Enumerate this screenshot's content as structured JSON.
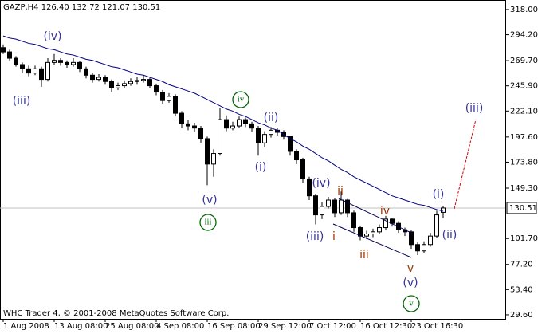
{
  "chart_data": {
    "type": "candlestick",
    "title": "GAZP,H4  126.40 132.72 121.07 130.51",
    "footer": "WHC Trader 4, © 2001-2008 MetaQuotes Software Corp.",
    "xlim": [
      -0.5,
      78.75
    ],
    "xticks": [
      {
        "value": 0,
        "label": "1 Aug 2008"
      },
      {
        "value": 8,
        "label": "13 Aug 08:00"
      },
      {
        "value": 16,
        "label": "25 Aug 08:00"
      },
      {
        "value": 24,
        "label": "4 Sep 08:00"
      },
      {
        "value": 32,
        "label": "16 Sep 08:00"
      },
      {
        "value": 40,
        "label": "29 Sep 12:00"
      },
      {
        "value": 48,
        "label": "7 Oct 12:00"
      },
      {
        "value": 56,
        "label": "16 Oct 12:30"
      },
      {
        "value": 64,
        "label": "23 Oct 16:30"
      }
    ],
    "ylim": [
      25.8,
      327.0
    ],
    "yticks": [
      {
        "value": 318,
        "label": "318.00"
      },
      {
        "value": 294.2,
        "label": "294.20"
      },
      {
        "value": 269.7,
        "label": "269.70"
      },
      {
        "value": 245.9,
        "label": "245.90"
      },
      {
        "value": 222.1,
        "label": "222.10"
      },
      {
        "value": 197.6,
        "label": "197.60"
      },
      {
        "value": 173.8,
        "label": "173.80"
      },
      {
        "value": 149.3,
        "label": "149.30"
      },
      {
        "value": 101.7,
        "label": "101.70"
      },
      {
        "value": 77.2,
        "label": "77.20"
      },
      {
        "value": 53.4,
        "label": "53.40"
      },
      {
        "value": 29.6,
        "label": "29.60"
      }
    ],
    "last_price": {
      "value": 130.51,
      "label": "130.51"
    },
    "up_color": "#ffffff",
    "down_color": "#000000",
    "ohlc": [
      [
        282,
        285,
        276,
        278
      ],
      [
        278,
        280,
        270,
        272
      ],
      [
        272,
        274,
        264,
        266
      ],
      [
        266,
        268,
        258,
        262
      ],
      [
        262,
        265,
        255,
        258
      ],
      [
        258,
        265,
        256,
        262
      ],
      [
        262,
        264,
        245,
        252
      ],
      [
        252,
        272,
        250,
        268
      ],
      [
        268,
        276,
        266,
        270
      ],
      [
        270,
        272,
        265,
        268
      ],
      [
        268,
        270,
        263,
        266
      ],
      [
        266,
        272,
        264,
        268
      ],
      [
        268,
        269,
        259,
        262
      ],
      [
        262,
        264,
        253,
        256
      ],
      [
        256,
        258,
        249,
        252
      ],
      [
        252,
        257,
        250,
        254
      ],
      [
        254,
        256,
        247,
        250
      ],
      [
        250,
        252,
        240,
        244
      ],
      [
        244,
        249,
        242,
        246
      ],
      [
        246,
        251,
        244,
        248
      ],
      [
        248,
        253,
        246,
        250
      ],
      [
        250,
        254,
        247,
        251
      ],
      [
        251,
        256,
        249,
        252
      ],
      [
        252,
        254,
        244,
        246
      ],
      [
        246,
        248,
        237,
        240
      ],
      [
        240,
        242,
        229,
        232
      ],
      [
        232,
        239,
        230,
        236
      ],
      [
        236,
        238,
        217,
        220
      ],
      [
        220,
        222,
        206,
        210
      ],
      [
        210,
        214,
        204,
        208
      ],
      [
        208,
        211,
        202,
        206
      ],
      [
        206,
        208,
        192,
        196
      ],
      [
        196,
        198,
        152,
        172
      ],
      [
        172,
        186,
        160,
        182
      ],
      [
        182,
        225,
        180,
        214
      ],
      [
        214,
        218,
        203,
        206
      ],
      [
        206,
        212,
        204,
        208
      ],
      [
        208,
        217,
        206,
        214
      ],
      [
        214,
        216,
        207,
        210
      ],
      [
        210,
        212,
        202,
        206
      ],
      [
        206,
        208,
        180,
        192
      ],
      [
        192,
        203,
        188,
        200
      ],
      [
        200,
        207,
        197,
        204
      ],
      [
        204,
        206,
        199,
        202
      ],
      [
        202,
        204,
        195,
        198
      ],
      [
        198,
        199,
        180,
        184
      ],
      [
        184,
        186,
        172,
        176
      ],
      [
        176,
        178,
        154,
        158
      ],
      [
        158,
        160,
        138,
        142
      ],
      [
        142,
        144,
        115,
        124
      ],
      [
        124,
        136,
        120,
        132
      ],
      [
        132,
        141,
        130,
        138
      ],
      [
        138,
        140,
        122,
        126
      ],
      [
        126,
        146,
        124,
        138
      ],
      [
        138,
        139,
        122,
        126
      ],
      [
        126,
        128,
        108,
        112
      ],
      [
        112,
        114,
        100,
        104
      ],
      [
        104,
        109,
        101,
        106
      ],
      [
        106,
        111,
        103,
        108
      ],
      [
        108,
        115,
        106,
        112
      ],
      [
        112,
        123,
        110,
        120
      ],
      [
        120,
        121,
        113,
        116
      ],
      [
        116,
        118,
        107,
        110
      ],
      [
        110,
        112,
        104,
        108
      ],
      [
        108,
        110,
        92,
        96
      ],
      [
        96,
        98,
        86,
        90
      ],
      [
        90,
        99,
        88,
        96
      ],
      [
        96,
        107,
        94,
        104
      ],
      [
        104,
        128,
        102,
        124
      ],
      [
        126.4,
        132.72,
        121.07,
        130.51
      ]
    ],
    "moving_average": {
      "color": "#000080",
      "values": [
        293,
        291,
        290,
        288,
        286,
        285,
        283,
        281,
        280,
        278,
        276,
        275,
        273,
        271,
        270,
        268,
        266,
        264,
        263,
        261,
        259,
        257,
        256,
        254,
        252,
        250,
        247,
        245,
        243,
        241,
        239,
        236,
        233,
        230,
        227,
        224,
        222,
        219,
        217,
        214,
        211,
        209,
        206,
        204,
        200,
        196,
        193,
        189,
        186,
        182,
        178,
        175,
        171,
        167,
        164,
        160,
        157,
        154,
        151,
        148,
        145,
        142,
        140,
        138,
        136,
        134,
        133,
        131,
        129,
        127.5
      ]
    },
    "annotations": [
      {
        "text": "(iii)",
        "color": "#333399"
      },
      {
        "text": "(iv)",
        "color": "#333399"
      },
      {
        "text": "(v)",
        "color": "#333399"
      },
      {
        "text": "iii",
        "color": "#006600"
      },
      {
        "text": "iv",
        "color": "#006600"
      },
      {
        "text": "(ii)",
        "color": "#333399"
      },
      {
        "text": "(i)",
        "color": "#333399"
      },
      {
        "text": "(iv)",
        "color": "#333399"
      },
      {
        "text": "(iii)",
        "color": "#333399"
      },
      {
        "text": "i",
        "color": "#993300"
      },
      {
        "text": "ii",
        "color": "#993300"
      },
      {
        "text": "iii",
        "color": "#993300"
      },
      {
        "text": "iv",
        "color": "#993300"
      },
      {
        "text": "v",
        "color": "#993300"
      },
      {
        "text": "(v)",
        "color": "#333399"
      },
      {
        "text": "v",
        "color": "#006600"
      },
      {
        "text": "(i)",
        "color": "#333399"
      },
      {
        "text": "(ii)",
        "color": "#333399"
      },
      {
        "text": "(iii)",
        "color": "#333399"
      }
    ]
  }
}
